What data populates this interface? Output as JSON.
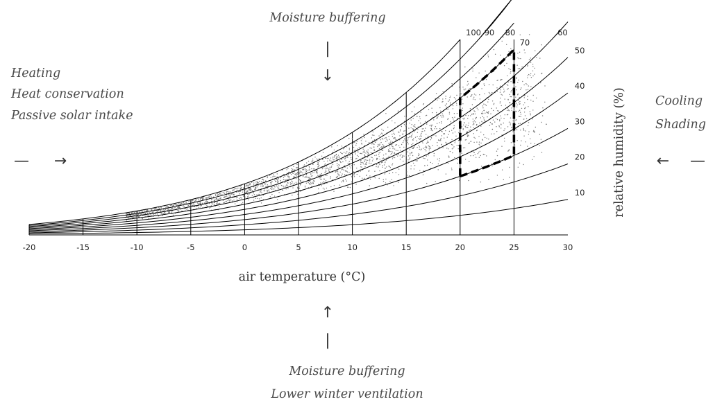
{
  "chart_data": {
    "type": "scatter",
    "title": "",
    "xlabel": "air temperature (°C)",
    "ylabel": "relative humidity (%)",
    "xlim": [
      -20,
      30
    ],
    "x_ticks": [
      "-20",
      "-15",
      "-10",
      "-5",
      "0",
      "5",
      "10",
      "15",
      "20",
      "25",
      "30"
    ],
    "rh_curves": [
      "100",
      "90",
      "80",
      "70",
      "60",
      "50",
      "40",
      "30",
      "20",
      "10"
    ],
    "grid": true,
    "comfort_zone": {
      "style": "dashed",
      "temperature_range": [
        20,
        25
      ],
      "rh_lower_edge": [
        30,
        30
      ],
      "rh_upper_edge": [
        70,
        70
      ]
    },
    "scatter_points": [
      [
        -10,
        85
      ],
      [
        -5,
        88
      ],
      [
        -5,
        82
      ],
      [
        0,
        90
      ],
      [
        0,
        85
      ],
      [
        0,
        80
      ],
      [
        5,
        90
      ],
      [
        5,
        82
      ],
      [
        5,
        75
      ],
      [
        10,
        88
      ],
      [
        10,
        80
      ],
      [
        10,
        70
      ],
      [
        12,
        85
      ],
      [
        12,
        75
      ],
      [
        14,
        80
      ],
      [
        14,
        70
      ],
      [
        15,
        65
      ],
      [
        16,
        78
      ],
      [
        17,
        60
      ],
      [
        18,
        70
      ],
      [
        18,
        55
      ],
      [
        20,
        60
      ],
      [
        20,
        50
      ],
      [
        21,
        45
      ],
      [
        22,
        55
      ],
      [
        23,
        45
      ],
      [
        25,
        40
      ],
      [
        26,
        45
      ],
      [
        28,
        35
      ]
    ],
    "annotations": {
      "top": [
        "Moisture buffering"
      ],
      "left": [
        "Heating",
        "Heat conservation",
        "Passive solar intake"
      ],
      "right": [
        "Cooling",
        "Shading"
      ],
      "bottom": [
        "Moisture buffering",
        "Lower winter ventilation"
      ]
    },
    "arrows": {
      "top": [
        "|",
        "↓"
      ],
      "left": [
        "—",
        "→"
      ],
      "right": [
        "←",
        "—"
      ],
      "bottom": [
        "↑",
        "|"
      ]
    }
  }
}
